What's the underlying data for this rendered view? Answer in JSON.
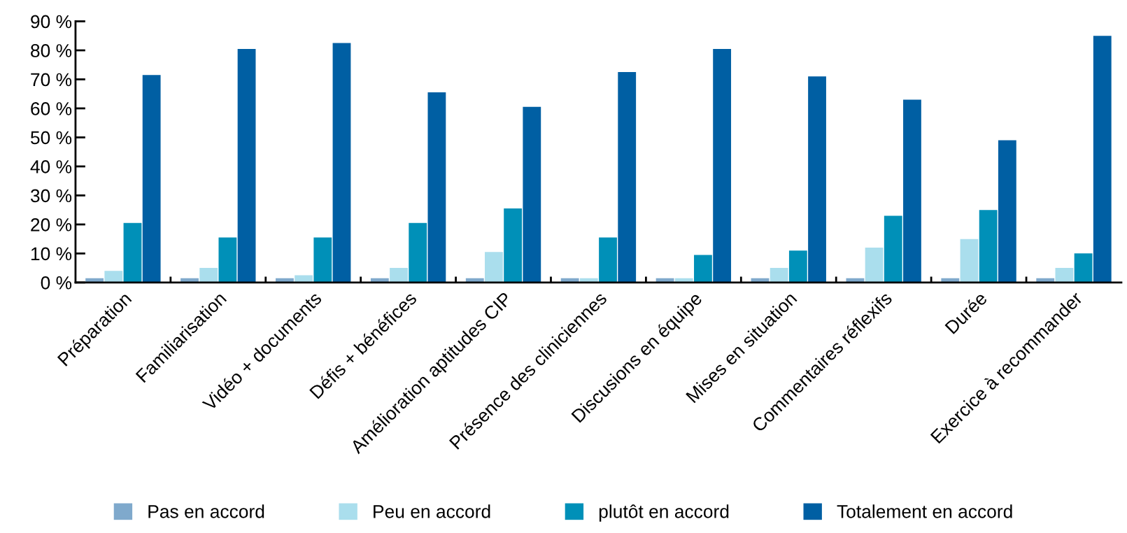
{
  "chart_data": {
    "type": "bar",
    "categories": [
      "Préparation",
      "Familiarisation",
      "Vidéo + documents",
      "Défis + bénéfices",
      "Amélioration aptitudes CIP",
      "Présence des cliniciennes",
      "Discusions en équipe",
      "Mises en situation",
      "Commentaires réflexifs",
      "Durée",
      "Exercice à recommander"
    ],
    "series": [
      {
        "name": "Pas en accord",
        "color": "#7fa9cc",
        "values": [
          1.5,
          1.5,
          1.5,
          1.5,
          1.5,
          1.5,
          1.5,
          1.5,
          1.5,
          1.5,
          1.5
        ]
      },
      {
        "name": "Peu en accord",
        "color": "#aadeed",
        "values": [
          4,
          5,
          2.5,
          5,
          10.5,
          1.5,
          1.5,
          5,
          12,
          15,
          5
        ]
      },
      {
        "name": "plutôt en accord",
        "color": "#0090b8",
        "values": [
          20.5,
          15.5,
          15.5,
          20.5,
          25.5,
          15.5,
          9.5,
          11,
          23,
          25,
          10
        ]
      },
      {
        "name": "Totalement en accord",
        "color": "#005fa3",
        "values": [
          71.5,
          80.5,
          82.5,
          65.5,
          60.5,
          72.5,
          80.5,
          71,
          63,
          49,
          85
        ]
      }
    ],
    "ylim": [
      0,
      90
    ],
    "yticks": [
      {
        "value": 0,
        "label": "0 %"
      },
      {
        "value": 10,
        "label": "10 %"
      },
      {
        "value": 20,
        "label": "20 %"
      },
      {
        "value": 30,
        "label": "30 %"
      },
      {
        "value": 40,
        "label": "40 %"
      },
      {
        "value": 50,
        "label": "50 %"
      },
      {
        "value": 60,
        "label": "60 %"
      },
      {
        "value": 70,
        "label": "70 %"
      },
      {
        "value": 80,
        "label": "80 %"
      },
      {
        "value": 90,
        "label": "90 %"
      }
    ],
    "grid": false,
    "legend": "bottom"
  }
}
